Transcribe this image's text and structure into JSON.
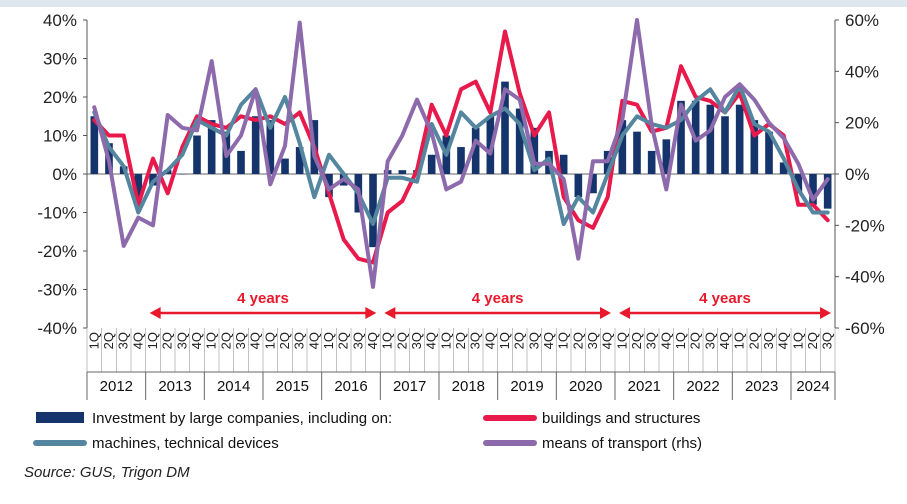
{
  "chart_data": {
    "type": "bar+line",
    "left_axis": {
      "ticks": [
        "40%",
        "30%",
        "20%",
        "10%",
        "0%",
        "-10%",
        "-20%",
        "-30%",
        "-40%"
      ],
      "min": -40,
      "max": 40
    },
    "right_axis": {
      "ticks": [
        "60%",
        "40%",
        "20%",
        "0%",
        "-20%",
        "-40%",
        "-60%"
      ],
      "min": -60,
      "max": 60
    },
    "quarters": [
      "1Q",
      "2Q",
      "3Q",
      "4Q",
      "1Q",
      "2Q",
      "3Q",
      "4Q",
      "1Q",
      "2Q",
      "3Q",
      "4Q",
      "1Q",
      "2Q",
      "3Q",
      "4Q",
      "1Q",
      "2Q",
      "3Q",
      "4Q",
      "1Q",
      "2Q",
      "3Q",
      "4Q",
      "1Q",
      "2Q",
      "3Q",
      "4Q",
      "1Q",
      "2Q",
      "3Q",
      "4Q",
      "1Q",
      "2Q",
      "3Q",
      "4Q",
      "1Q",
      "2Q",
      "3Q",
      "4Q",
      "1Q",
      "2Q",
      "3Q",
      "4Q",
      "1Q",
      "2Q",
      "3Q",
      "4Q",
      "1Q",
      "2Q",
      "3Q"
    ],
    "years": [
      "2012",
      "2013",
      "2014",
      "2015",
      "2016",
      "2017",
      "2018",
      "2019",
      "2020",
      "2021",
      "2022",
      "2023",
      "2024"
    ],
    "series": [
      {
        "name": "Investment by large companies, including on:",
        "type": "bar",
        "axis": "left",
        "color": "#15346b",
        "values": [
          15,
          8,
          2,
          -6,
          -3,
          1,
          0,
          10,
          14,
          11,
          6,
          15,
          14,
          4,
          7,
          14,
          -6,
          -3,
          -10,
          -19,
          1,
          1,
          1,
          5,
          10,
          7,
          12,
          15,
          24,
          17,
          12,
          6,
          5,
          -6,
          -5,
          6,
          14,
          11,
          6,
          9,
          19,
          19,
          18,
          15,
          18,
          14,
          11,
          3,
          -5,
          -8,
          -9
        ]
      },
      {
        "name": "buildings and structures",
        "type": "line",
        "axis": "left",
        "color": "#e8194b",
        "values": [
          14,
          10,
          10,
          -8,
          4,
          -5,
          7,
          15,
          13,
          12,
          15,
          14,
          15,
          13,
          16,
          7,
          -5,
          -17,
          -22,
          -23,
          -10,
          -7,
          1,
          18,
          10,
          22,
          24,
          16,
          37,
          21,
          10,
          16,
          -6,
          -12,
          -14,
          -6,
          19,
          18,
          11,
          12,
          28,
          20,
          19,
          16,
          21,
          10,
          13,
          10,
          -8,
          -8,
          -12
        ]
      },
      {
        "name": "machines, technical devices",
        "type": "line",
        "axis": "left",
        "color": "#54869f",
        "values": [
          16,
          7,
          2,
          -10,
          -2,
          1,
          5,
          14,
          12,
          10,
          18,
          22,
          12,
          20,
          8,
          -6,
          5,
          0,
          -5,
          -13,
          -1,
          -1,
          -2,
          13,
          5,
          16,
          12,
          15,
          17,
          13,
          1,
          4,
          -13,
          -6,
          -10,
          0,
          10,
          15,
          13,
          12,
          14,
          19,
          22,
          16,
          23,
          13,
          11,
          4,
          -4,
          -10,
          -10
        ]
      },
      {
        "name": "means of transport (rhs)",
        "type": "line",
        "axis": "right",
        "color": "#8d6aab",
        "values": [
          26,
          5,
          -28,
          -17,
          -20,
          23,
          18,
          17,
          44,
          7,
          15,
          33,
          -4,
          11,
          59,
          7,
          -6,
          -2,
          -6,
          -44,
          5,
          15,
          29,
          16,
          -6,
          -3,
          13,
          8,
          33,
          29,
          4,
          4,
          -2,
          -33,
          5,
          5,
          21,
          60,
          19,
          -6,
          27,
          13,
          17,
          30,
          35,
          29,
          20,
          14,
          4,
          -10,
          -2
        ]
      }
    ],
    "annotations": [
      "4 years",
      "4 years",
      "4 years"
    ],
    "grid": false,
    "legend": "bottom"
  },
  "legend": {
    "items": [
      {
        "label": "Investment by large companies, including on:",
        "color": "#15346b",
        "kind": "bar"
      },
      {
        "label": "buildings and structures",
        "color": "#e8194b",
        "kind": "line"
      },
      {
        "label": "machines, technical devices",
        "color": "#54869f",
        "kind": "line"
      },
      {
        "label": "means of transport (rhs)",
        "color": "#8d6aab",
        "kind": "line"
      }
    ]
  },
  "source": "Source: GUS, Trigon DM"
}
